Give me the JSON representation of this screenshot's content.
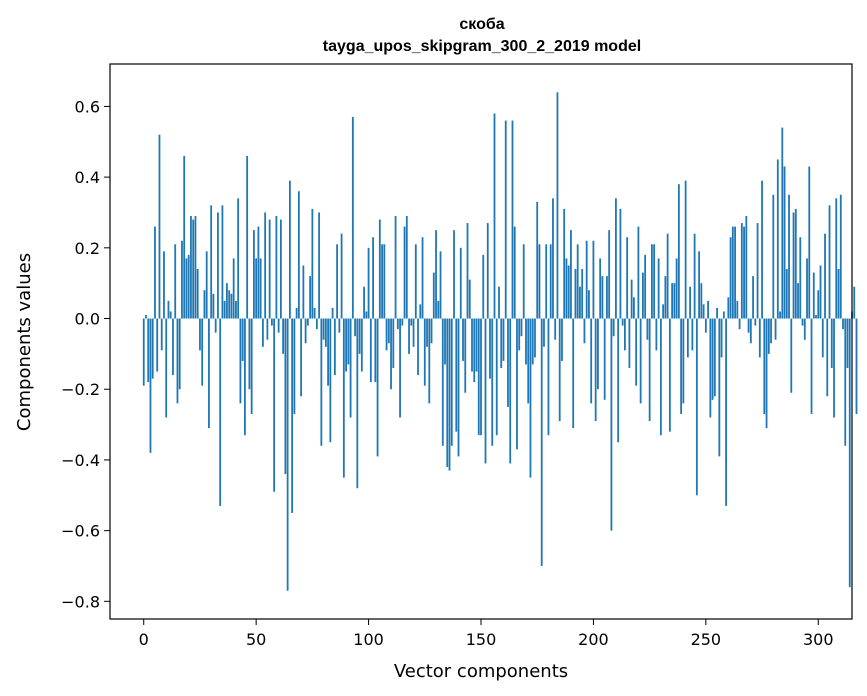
{
  "chart_data": {
    "type": "bar",
    "title": "скоба",
    "subtitle": "tayga_upos_skipgram_300_2_2019 model",
    "xlabel": "Vector components",
    "ylabel": "Components values",
    "xlim": [
      -15,
      315
    ],
    "ylim": [
      -0.85,
      0.72
    ],
    "xticks": [
      0,
      50,
      100,
      150,
      200,
      250,
      300
    ],
    "yticks": [
      -0.8,
      -0.6,
      -0.4,
      -0.2,
      0.0,
      0.2,
      0.4,
      0.6
    ],
    "ytick_labels": [
      "−0.8",
      "−0.6",
      "−0.4",
      "−0.2",
      "0.0",
      "0.2",
      "0.4",
      "0.6"
    ],
    "bar_color": "#1f77b4",
    "grid": false,
    "values": [
      -0.19,
      0.01,
      -0.18,
      -0.38,
      -0.17,
      0.26,
      -0.15,
      0.52,
      -0.09,
      0.19,
      -0.28,
      0.05,
      0.02,
      -0.16,
      0.21,
      -0.24,
      -0.2,
      0.22,
      0.46,
      0.17,
      0.18,
      0.29,
      0.28,
      0.29,
      0.14,
      -0.09,
      -0.19,
      0.08,
      0.19,
      -0.31,
      0.32,
      0.07,
      -0.04,
      0.3,
      -0.53,
      0.32,
      0.05,
      0.1,
      0.08,
      0.07,
      0.17,
      0.05,
      0.34,
      -0.24,
      -0.12,
      -0.33,
      0.46,
      -0.2,
      -0.27,
      0.25,
      0.17,
      0.26,
      0.17,
      -0.08,
      0.3,
      -0.06,
      0.28,
      -0.02,
      -0.49,
      0.29,
      -0.04,
      0.28,
      -0.1,
      -0.44,
      -0.77,
      0.39,
      -0.55,
      -0.27,
      0.03,
      0.36,
      -0.22,
      0.15,
      -0.07,
      -0.02,
      0.12,
      0.31,
      0.03,
      -0.03,
      0.3,
      -0.36,
      -0.06,
      -0.08,
      -0.19,
      -0.35,
      0.03,
      -0.16,
      0.21,
      -0.04,
      0.24,
      -0.45,
      -0.15,
      -0.13,
      -0.28,
      0.57,
      -0.05,
      -0.48,
      -0.1,
      -0.15,
      0.09,
      0.02,
      0.2,
      -0.18,
      0.23,
      -0.18,
      -0.39,
      0.28,
      0.21,
      0.21,
      -0.09,
      -0.07,
      -0.2,
      -0.14,
      0.29,
      -0.03,
      -0.28,
      -0.02,
      0.26,
      0.29,
      -0.1,
      -0.02,
      -0.08,
      0.21,
      -0.16,
      0.04,
      0.23,
      -0.19,
      -0.08,
      -0.24,
      -0.07,
      0.13,
      0.25,
      0.05,
      0.19,
      -0.36,
      -0.13,
      -0.42,
      -0.43,
      -0.36,
      0.25,
      -0.32,
      -0.39,
      0.2,
      -0.12,
      -0.21,
      0.27,
      0.11,
      -0.15,
      -0.18,
      -0.15,
      -0.33,
      -0.33,
      0.18,
      -0.41,
      0.27,
      -0.17,
      -0.36,
      0.58,
      -0.33,
      0.09,
      -0.14,
      -0.12,
      0.56,
      -0.25,
      -0.41,
      0.56,
      0.26,
      -0.37,
      -0.09,
      -0.05,
      0.21,
      -0.13,
      -0.24,
      -0.45,
      -0.13,
      -0.11,
      0.33,
      0.21,
      -0.7,
      -0.08,
      0.21,
      -0.33,
      0.21,
      0.34,
      -0.06,
      0.64,
      -0.29,
      -0.12,
      0.31,
      0.17,
      0.15,
      0.25,
      -0.31,
      0.14,
      0.21,
      0.09,
      0.14,
      -0.07,
      0.22,
      0.08,
      -0.24,
      0.22,
      -0.29,
      -0.2,
      0.17,
      0.12,
      -0.23,
      0.12,
      0.25,
      -0.6,
      -0.05,
      0.34,
      -0.35,
      0.31,
      -0.02,
      -0.09,
      0.23,
      -0.14,
      0.11,
      0.06,
      -0.19,
      0.26,
      -0.24,
      0.13,
      0.18,
      -0.06,
      -0.29,
      0.21,
      0.21,
      -0.09,
      0.17,
      -0.33,
      0.04,
      0.12,
      0.24,
      -0.32,
      0.1,
      0.1,
      0.17,
      0.38,
      -0.27,
      -0.24,
      0.39,
      -0.11,
      0.09,
      -0.09,
      0.24,
      -0.5,
      0.19,
      0.1,
      0.04,
      -0.04,
      0.05,
      -0.28,
      -0.23,
      -0.22,
      0.03,
      -0.39,
      -0.11,
      0.02,
      -0.53,
      0.06,
      0.23,
      0.26,
      0.26,
      0.05,
      -0.03,
      0.27,
      0.26,
      0.29,
      -0.04,
      -0.07,
      0.12,
      -0.02,
      0.27,
      -0.11,
      0.39,
      -0.27,
      -0.31,
      -0.1,
      -0.07,
      0.35,
      -0.06,
      0.45,
      0.02,
      0.54,
      0.43,
      0.14,
      0.35,
      -0.21,
      0.3,
      0.31,
      0.1,
      0.23,
      -0.02,
      -0.06,
      0.17,
      0.43,
      -0.27,
      0.13,
      0.01,
      0.08,
      0.15,
      -0.11,
      0.24,
      -0.22,
      0.32,
      -0.14,
      -0.28,
      0.34,
      0.14,
      0.35,
      -0.03,
      -0.36,
      -0.14,
      -0.76,
      0.02,
      0.09,
      -0.27
    ]
  }
}
